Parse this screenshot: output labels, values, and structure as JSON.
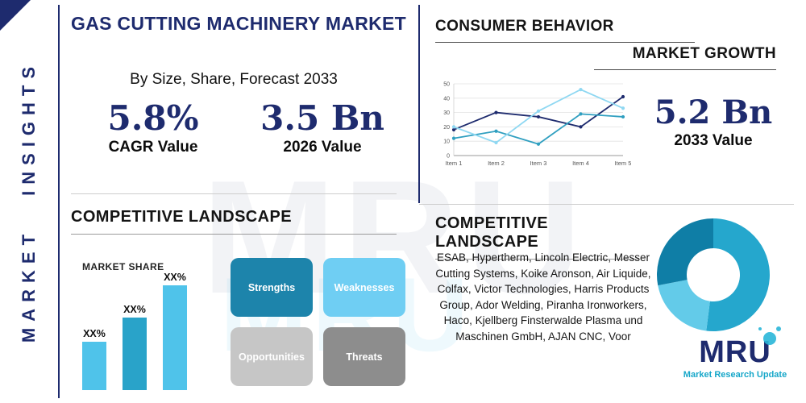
{
  "brand": {
    "watermark": "MRU",
    "logo_text": "MRU",
    "logo_tagline": "Market Research Update"
  },
  "sidebar": {
    "vertical_label": "MARKET INSIGHTS"
  },
  "header": {
    "title": "GAS CUTTING MACHINERY MARKET",
    "subtitle": "By Size, Share, Forecast 2033"
  },
  "stats": {
    "cagr": {
      "value": "5.8%",
      "label": "CAGR Value"
    },
    "value_2026": {
      "value": "3.5 Bn",
      "label": "2026 Value"
    },
    "value_2033": {
      "value": "5.2 Bn",
      "label": "2033 Value"
    }
  },
  "sections": {
    "consumer_behavior": "CONSUMER BEHAVIOR",
    "market_growth": "MARKET GROWTH",
    "competitive_landscape_left": "COMPETITIVE LANDSCAPE",
    "competitive_landscape_right": "COMPETITIVE LANDSCAPE",
    "market_share_label": "MARKET SHARE"
  },
  "swot": {
    "strengths": {
      "label": "Strengths",
      "color": "#1d84ab"
    },
    "weaknesses": {
      "label": "Weaknesses",
      "color": "#6fcef3"
    },
    "opportunities": {
      "label": "Opportunities",
      "color": "#c6c6c6"
    },
    "threats": {
      "label": "Threats",
      "color": "#8d8d8d"
    }
  },
  "companies_text": "ESAB, Hypertherm, Lincoln Electric, Messer Cutting Systems, Koike Aronson, Air Liquide, Colfax, Victor Technologies, Harris Products Group, Ador Welding, Piranha Ironworkers, Haco, Kjellberg Finsterwalde Plasma und Maschinen GmbH, AJAN CNC, Voor",
  "colors": {
    "navy": "#1e2b6e",
    "teal": "#17a7c9",
    "light_blue": "#6fcef3",
    "gray": "#c6c6c6",
    "dark_gray": "#8d8d8d"
  },
  "chart_data": [
    {
      "type": "line",
      "title": "MARKET GROWTH",
      "x": [
        "Item 1",
        "Item 2",
        "Item 3",
        "Item 4",
        "Item 5"
      ],
      "series": [
        {
          "name": "series-navy",
          "color": "#1e2b6e",
          "values": [
            18,
            30,
            27,
            20,
            41
          ]
        },
        {
          "name": "series-teal",
          "color": "#2f9fc0",
          "values": [
            12,
            17,
            8,
            29,
            27
          ]
        },
        {
          "name": "series-light",
          "color": "#8fd8f2",
          "values": [
            20,
            9,
            31,
            46,
            33
          ]
        }
      ],
      "ylim": [
        0,
        50
      ],
      "yticks": [
        0,
        10,
        20,
        30,
        40,
        50
      ],
      "grid": true,
      "legend": "none"
    },
    {
      "type": "bar",
      "title": "MARKET SHARE",
      "categories": [
        "",
        "",
        ""
      ],
      "values": [
        30,
        45,
        65
      ],
      "labels": [
        "XX%",
        "XX%",
        "XX%"
      ],
      "colors": [
        "#4fc3ea",
        "#29a3c9",
        "#4fc3ea"
      ],
      "ylim": [
        0,
        100
      ]
    },
    {
      "type": "pie",
      "title": "COMPETITIVE LANDSCAPE",
      "donut": true,
      "slices": [
        {
          "label": "segment-1",
          "value": 52,
          "color": "#25a7cd"
        },
        {
          "label": "segment-2",
          "value": 20,
          "color": "#63cbe9"
        },
        {
          "label": "segment-3",
          "value": 28,
          "color": "#0f7ea6"
        }
      ]
    }
  ]
}
